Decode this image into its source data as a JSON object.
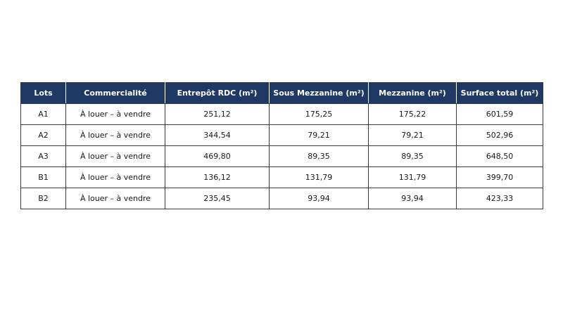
{
  "table": {
    "headers": [
      "Lots",
      "Commercialité",
      "Entrepôt RDC (m²)",
      "Sous Mezzanine (m²)",
      "Mezzanine (m²)",
      "Surface total (m²)"
    ],
    "rows": [
      [
        "A1",
        "À louer – à vendre",
        "251,12",
        "175,25",
        "175,22",
        "601,59"
      ],
      [
        "A2",
        "À louer – à vendre",
        "344,54",
        "79,21",
        "79,21",
        "502,96"
      ],
      [
        "A3",
        "À louer – à vendre",
        "469,80",
        "89,35",
        "89,35",
        "648,50"
      ],
      [
        "B1",
        "À louer – à vendre",
        "136,12",
        "131,79",
        "131,79",
        "399,70"
      ],
      [
        "B2",
        "À louer – à vendre",
        "235,45",
        "93,94",
        "93,94",
        "423,33"
      ]
    ],
    "colors": {
      "header_bg": "#1f3864",
      "header_text": "#ffffff",
      "border": "#3a3a3a"
    }
  }
}
